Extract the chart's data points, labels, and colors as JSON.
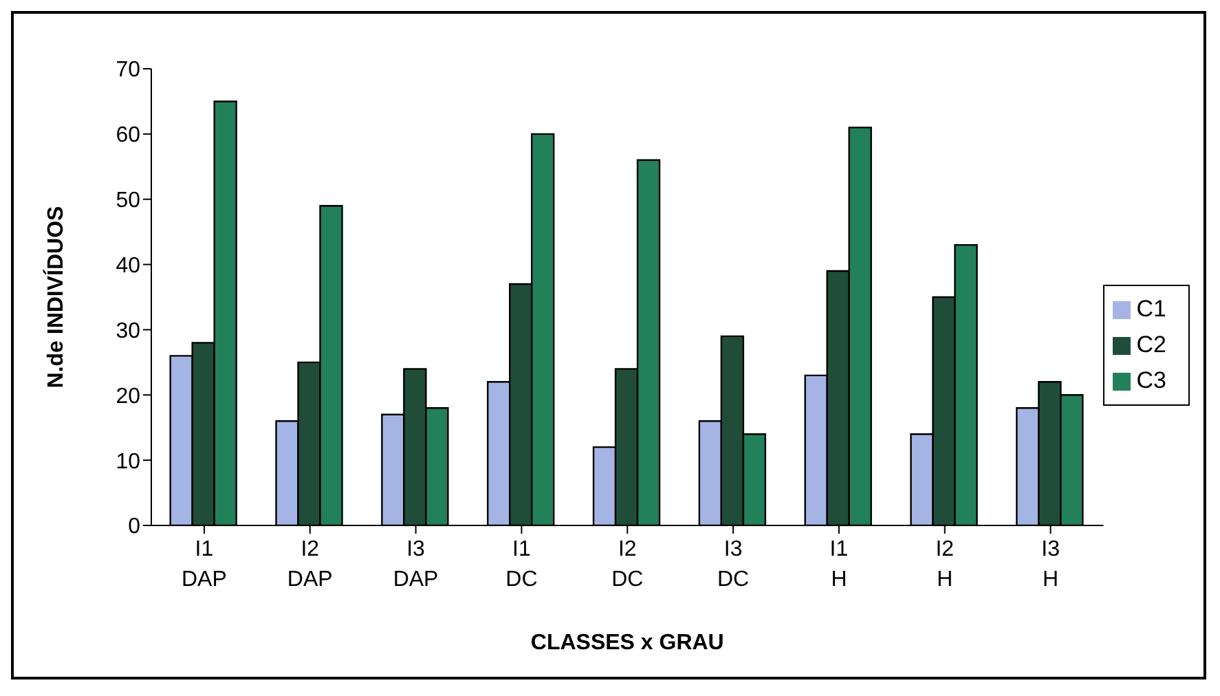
{
  "chart_data": {
    "type": "bar",
    "xlabel": "CLASSES x GRAU",
    "ylabel": "N.de INDIVÍDUOS",
    "categories": [
      "I1\nDAP",
      "I2\nDAP",
      "I3\nDAP",
      "I1\nDC",
      "I2\nDC",
      "I3\nDC",
      "I1\nH",
      "I2\nH",
      "I3\nH"
    ],
    "series": [
      {
        "name": "C1",
        "color": "#a4b4e4",
        "values": [
          26,
          16,
          17,
          22,
          12,
          16,
          23,
          14,
          18
        ]
      },
      {
        "name": "C2",
        "color": "#1f4d3a",
        "values": [
          28,
          25,
          24,
          37,
          24,
          29,
          39,
          35,
          22
        ]
      },
      {
        "name": "C3",
        "color": "#22805a",
        "values": [
          65,
          49,
          18,
          60,
          56,
          14,
          61,
          43,
          20
        ]
      }
    ],
    "ylim": [
      0,
      70
    ],
    "yticks": [
      0,
      10,
      20,
      30,
      40,
      50,
      60,
      70
    ],
    "grid": false,
    "legend": "right"
  }
}
